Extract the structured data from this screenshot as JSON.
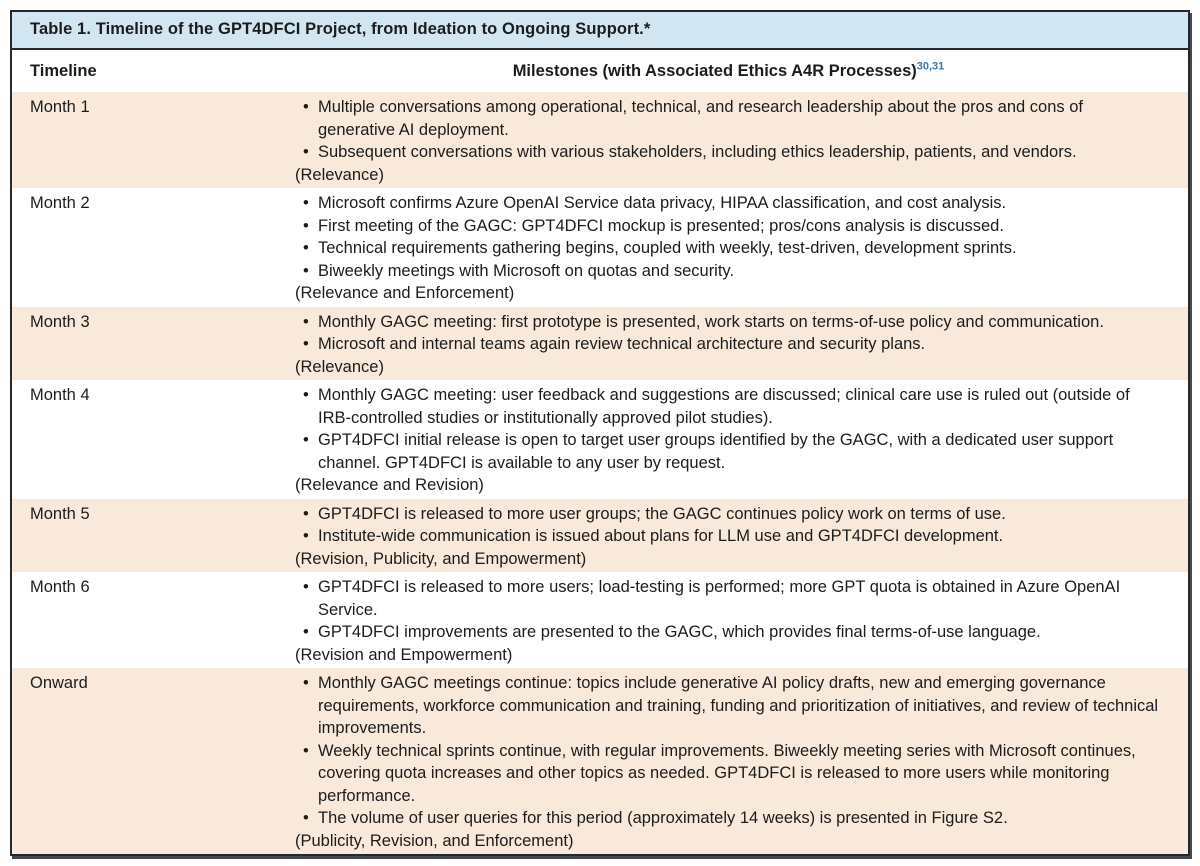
{
  "table": {
    "title": "Table 1. Timeline of the GPT4DFCI Project, from Ideation to Ongoing Support.*",
    "columns": {
      "timeline": "Timeline",
      "milestones": "Milestones (with Associated Ethics A4R Processes)",
      "milestones_refs": "30,31"
    },
    "rows": [
      {
        "timeline": "Month 1",
        "bullets": [
          "Multiple conversations among operational, technical, and research leadership about the pros and cons of generative AI deployment.",
          "Subsequent conversations with various stakeholders, including ethics leadership, patients, and vendors."
        ],
        "process": "(Relevance)"
      },
      {
        "timeline": "Month 2",
        "bullets": [
          "Microsoft confirms Azure OpenAI Service data privacy, HIPAA classification, and cost analysis.",
          "First meeting of the GAGC: GPT4DFCI mockup is presented; pros/cons analysis is discussed.",
          "Technical requirements gathering begins, coupled with weekly, test-driven, development sprints.",
          "Biweekly meetings with Microsoft on quotas and security."
        ],
        "process": "(Relevance and Enforcement)"
      },
      {
        "timeline": "Month 3",
        "bullets": [
          "Monthly GAGC meeting: first prototype is presented, work starts on terms-of-use policy and communication.",
          "Microsoft and internal teams again review technical architecture and security plans."
        ],
        "process": "(Relevance)"
      },
      {
        "timeline": "Month 4",
        "bullets": [
          "Monthly GAGC meeting: user feedback and suggestions are discussed; clinical care use is ruled out (outside of IRB-controlled studies or institutionally approved pilot studies).",
          "GPT4DFCI initial release is open to target user groups identified by the GAGC, with a dedicated user support channel. GPT4DFCI is available to any user by request."
        ],
        "process": "(Relevance and Revision)"
      },
      {
        "timeline": "Month 5",
        "bullets": [
          "GPT4DFCI is released to more user groups; the GAGC continues policy work on terms of use.",
          "Institute-wide communication is issued about plans for LLM use and GPT4DFCI development."
        ],
        "process": "(Revision, Publicity, and Empowerment)"
      },
      {
        "timeline": "Month 6",
        "bullets": [
          "GPT4DFCI is released to more users; load-testing is performed; more GPT quota is obtained in Azure OpenAI Service.",
          "GPT4DFCI improvements are presented to the GAGC, which provides final terms-of-use language."
        ],
        "process": "(Revision and Empowerment)"
      },
      {
        "timeline": "Onward",
        "bullets": [
          "Monthly GAGC meetings continue: topics include generative AI policy drafts, new and emerging governance requirements, workforce communication and training, funding and prioritization of initiatives, and review of technical improvements.",
          "Weekly technical sprints continue, with regular improvements. Biweekly meeting series with Microsoft continues, covering quota increases and other topics as needed. GPT4DFCI is released to more users while monitoring performance.",
          "The volume of user queries for this period (approximately 14 weeks) is presented in Figure S2."
        ],
        "process": "(Publicity, Revision, and Enforcement)"
      }
    ]
  },
  "icons": {
    "bullet": "•"
  },
  "colors": {
    "title_bar_bg": "#d2e6f2",
    "row_alt_bg": "#f8e9da",
    "border": "#27272f",
    "reference_blue": "#3878a8",
    "text": "#1c1c1c"
  }
}
